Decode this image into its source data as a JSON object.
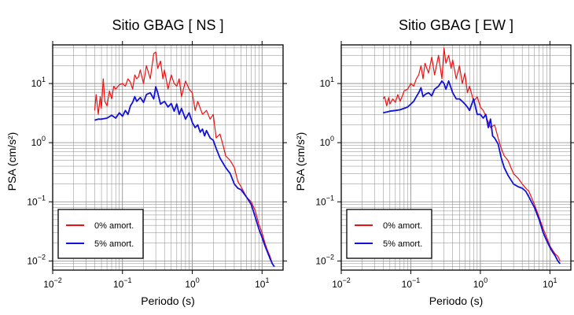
{
  "colors": {
    "damp0": "#ee1111",
    "damp5": "#1111dd",
    "grid": "#888888",
    "axis": "#000000"
  },
  "chart_data": [
    {
      "type": "line",
      "title": "Sitio GBAG [ NS ]",
      "xlabel": "Periodo (s)",
      "ylabel": "PSA (cm/s²)",
      "xscale": "log",
      "yscale": "log",
      "xlim": [
        0.01,
        20
      ],
      "ylim": [
        0.007,
        45
      ],
      "xticks": [
        0.01,
        0.1,
        1,
        10
      ],
      "xtick_labels": [
        {
          "base": "10",
          "exp": "−2"
        },
        {
          "base": "10",
          "exp": "−1"
        },
        {
          "base": "10",
          "exp": "0"
        },
        {
          "base": "10",
          "exp": "1"
        }
      ],
      "yticks": [
        0.01,
        0.1,
        1,
        10
      ],
      "ytick_labels": [
        {
          "base": "10",
          "exp": "−2"
        },
        {
          "base": "10",
          "exp": "−1"
        },
        {
          "base": "10",
          "exp": "0"
        },
        {
          "base": "10",
          "exp": "1"
        }
      ],
      "grid": true,
      "legend": "bottom-left",
      "series": [
        {
          "name": "0% amort.",
          "color": "#ee1111",
          "x": [
            0.04,
            0.042,
            0.045,
            0.048,
            0.05,
            0.053,
            0.056,
            0.06,
            0.065,
            0.07,
            0.075,
            0.08,
            0.09,
            0.1,
            0.11,
            0.12,
            0.13,
            0.14,
            0.15,
            0.16,
            0.17,
            0.18,
            0.2,
            0.22,
            0.25,
            0.28,
            0.3,
            0.32,
            0.35,
            0.38,
            0.4,
            0.45,
            0.5,
            0.55,
            0.6,
            0.65,
            0.7,
            0.8,
            0.9,
            1.0,
            1.1,
            1.2,
            1.4,
            1.6,
            1.8,
            2.0,
            2.2,
            2.5,
            2.8,
            3.0,
            3.5,
            4.0,
            4.5,
            5,
            6,
            7,
            8,
            9,
            10,
            11,
            12,
            13,
            14
          ],
          "y": [
            3.5,
            6.5,
            3.0,
            6.0,
            3.8,
            12.0,
            5.0,
            4.2,
            7.5,
            5.5,
            9.0,
            8.0,
            9.5,
            10.0,
            9.0,
            12.0,
            10.5,
            8.0,
            14.0,
            12.0,
            13.0,
            17.0,
            10.0,
            20.0,
            12.0,
            32.0,
            34.0,
            18.0,
            24.0,
            12.0,
            17.0,
            8.0,
            14.0,
            10.0,
            9.0,
            12.0,
            6.0,
            11.0,
            8.0,
            7.0,
            3.5,
            5.0,
            3.0,
            3.5,
            2.5,
            3.0,
            1.2,
            1.4,
            0.85,
            0.6,
            0.5,
            0.38,
            0.22,
            0.18,
            0.12,
            0.1,
            0.07,
            0.042,
            0.03,
            0.02,
            0.015,
            0.012,
            0.009
          ]
        },
        {
          "name": "5% amort.",
          "color": "#1111dd",
          "x": [
            0.04,
            0.045,
            0.05,
            0.06,
            0.07,
            0.08,
            0.09,
            0.1,
            0.11,
            0.12,
            0.13,
            0.14,
            0.15,
            0.16,
            0.18,
            0.2,
            0.22,
            0.25,
            0.28,
            0.3,
            0.32,
            0.35,
            0.4,
            0.45,
            0.5,
            0.55,
            0.6,
            0.65,
            0.7,
            0.8,
            0.9,
            1.0,
            1.1,
            1.2,
            1.3,
            1.4,
            1.5,
            1.6,
            1.8,
            2.0,
            2.2,
            2.5,
            3,
            3.5,
            4,
            4.5,
            5,
            6,
            7,
            8,
            9,
            10,
            11,
            12,
            13,
            14,
            15
          ],
          "y": [
            2.4,
            2.5,
            2.5,
            2.6,
            2.9,
            2.6,
            3.2,
            2.8,
            3.5,
            3.0,
            4.2,
            4.8,
            6.0,
            5.0,
            5.8,
            4.8,
            6.5,
            7.0,
            5.5,
            8.8,
            7.0,
            4.5,
            5.0,
            4.0,
            4.6,
            3.4,
            4.5,
            3.0,
            3.8,
            2.5,
            3.2,
            2.2,
            1.8,
            2.0,
            1.5,
            1.7,
            1.3,
            1.6,
            1.2,
            1.1,
            0.8,
            0.55,
            0.38,
            0.3,
            0.2,
            0.17,
            0.16,
            0.12,
            0.09,
            0.055,
            0.035,
            0.025,
            0.018,
            0.014,
            0.011,
            0.009,
            0.008
          ]
        }
      ]
    },
    {
      "type": "line",
      "title": "Sitio GBAG [ EW ]",
      "xlabel": "Periodo (s)",
      "ylabel": "PSA (cm/s²)",
      "xscale": "log",
      "yscale": "log",
      "xlim": [
        0.01,
        20
      ],
      "ylim": [
        0.007,
        45
      ],
      "xticks": [
        0.01,
        0.1,
        1,
        10
      ],
      "xtick_labels": [
        {
          "base": "10",
          "exp": "−2"
        },
        {
          "base": "10",
          "exp": "−1"
        },
        {
          "base": "10",
          "exp": "0"
        },
        {
          "base": "10",
          "exp": "1"
        }
      ],
      "yticks": [
        0.01,
        0.1,
        1,
        10
      ],
      "ytick_labels": [
        {
          "base": "10",
          "exp": "−2"
        },
        {
          "base": "10",
          "exp": "−1"
        },
        {
          "base": "10",
          "exp": "0"
        },
        {
          "base": "10",
          "exp": "1"
        }
      ],
      "grid": true,
      "legend": "bottom-left",
      "series": [
        {
          "name": "0% amort.",
          "color": "#ee1111",
          "x": [
            0.04,
            0.042,
            0.045,
            0.048,
            0.05,
            0.055,
            0.06,
            0.065,
            0.07,
            0.075,
            0.08,
            0.09,
            0.1,
            0.11,
            0.12,
            0.13,
            0.14,
            0.15,
            0.16,
            0.18,
            0.2,
            0.22,
            0.25,
            0.28,
            0.3,
            0.32,
            0.35,
            0.38,
            0.4,
            0.45,
            0.5,
            0.55,
            0.6,
            0.65,
            0.7,
            0.8,
            0.9,
            1.0,
            1.1,
            1.2,
            1.4,
            1.6,
            1.8,
            2.0,
            2.2,
            2.5,
            2.8,
            3.0,
            3.5,
            4.0,
            4.5,
            5,
            6,
            7,
            8,
            9,
            10,
            11,
            12,
            13,
            14
          ],
          "y": [
            5.5,
            6.0,
            4.2,
            5.8,
            4.5,
            5.5,
            4.8,
            6.5,
            5.0,
            6.0,
            7.5,
            8.0,
            10.0,
            9.0,
            12.0,
            14.0,
            20.0,
            12.0,
            22.0,
            15.0,
            28.0,
            14.0,
            30.0,
            12.0,
            40.0,
            22.0,
            30.0,
            18.0,
            25.0,
            12.0,
            20.0,
            10.0,
            15.0,
            7.0,
            9.0,
            5.0,
            6.0,
            4.0,
            3.5,
            2.8,
            1.8,
            2.0,
            1.2,
            0.8,
            0.6,
            0.5,
            0.36,
            0.3,
            0.25,
            0.2,
            0.17,
            0.15,
            0.09,
            0.055,
            0.035,
            0.025,
            0.018,
            0.015,
            0.013,
            0.012,
            0.01
          ]
        },
        {
          "name": "5% amort.",
          "color": "#1111dd",
          "x": [
            0.04,
            0.045,
            0.05,
            0.06,
            0.07,
            0.08,
            0.09,
            0.1,
            0.11,
            0.12,
            0.13,
            0.14,
            0.15,
            0.16,
            0.18,
            0.2,
            0.22,
            0.25,
            0.28,
            0.3,
            0.32,
            0.35,
            0.4,
            0.45,
            0.5,
            0.55,
            0.6,
            0.65,
            0.7,
            0.8,
            0.9,
            1.0,
            1.1,
            1.2,
            1.3,
            1.4,
            1.5,
            1.6,
            1.8,
            2.0,
            2.2,
            2.5,
            3,
            3.5,
            4,
            4.5,
            5,
            6,
            7,
            8,
            9,
            10,
            11,
            12,
            13,
            14
          ],
          "y": [
            3.2,
            3.3,
            3.4,
            3.5,
            3.6,
            3.8,
            4.0,
            4.5,
            5.0,
            6.0,
            7.0,
            8.5,
            6.0,
            6.5,
            7.0,
            6.2,
            8.0,
            9.0,
            11.0,
            10.0,
            8.0,
            11.0,
            7.0,
            5.5,
            5.5,
            5.0,
            4.5,
            4.0,
            3.5,
            5.5,
            3.0,
            3.0,
            2.6,
            3.0,
            1.8,
            2.5,
            1.3,
            1.2,
            0.95,
            0.55,
            0.38,
            0.28,
            0.2,
            0.18,
            0.17,
            0.15,
            0.12,
            0.08,
            0.05,
            0.03,
            0.022,
            0.017,
            0.014,
            0.012,
            0.01,
            0.009
          ]
        }
      ]
    }
  ]
}
